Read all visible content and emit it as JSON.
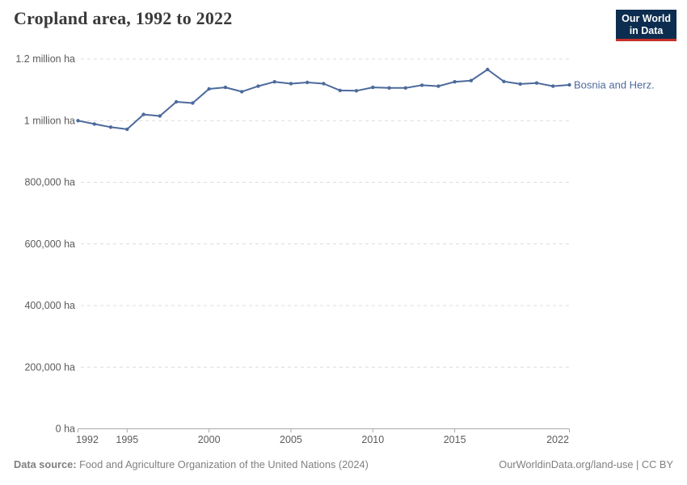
{
  "header": {
    "title": "Cropland area, 1992 to 2022",
    "logo": {
      "line1": "Our World",
      "line2": "in Data"
    }
  },
  "chart_data": {
    "type": "line",
    "title": "Cropland area, 1992 to 2022",
    "xlabel": "",
    "ylabel": "",
    "x": [
      1992,
      1993,
      1994,
      1995,
      1996,
      1997,
      1998,
      1999,
      2000,
      2001,
      2002,
      2003,
      2004,
      2005,
      2006,
      2007,
      2008,
      2009,
      2010,
      2011,
      2012,
      2013,
      2014,
      2015,
      2016,
      2017,
      2018,
      2019,
      2020,
      2021,
      2022
    ],
    "series": [
      {
        "name": "Bosnia and Herz.",
        "color": "#4C6A9C",
        "values": [
          1000000,
          989000,
          979000,
          972000,
          1020000,
          1015000,
          1061000,
          1057000,
          1103000,
          1108000,
          1094000,
          1112000,
          1126000,
          1120000,
          1124000,
          1120000,
          1098000,
          1097000,
          1108000,
          1106000,
          1106000,
          1115000,
          1112000,
          1126000,
          1130000,
          1166000,
          1127000,
          1119000,
          1122000,
          1112000,
          1116000
        ]
      }
    ],
    "xlim": [
      1992,
      2022
    ],
    "ylim": [
      0,
      1200000
    ],
    "y_ticks": [
      {
        "value": 0,
        "label": "0 ha"
      },
      {
        "value": 200000,
        "label": "200,000 ha"
      },
      {
        "value": 400000,
        "label": "400,000 ha"
      },
      {
        "value": 600000,
        "label": "600,000 ha"
      },
      {
        "value": 800000,
        "label": "800,000 ha"
      },
      {
        "value": 1000000,
        "label": "1 million ha"
      },
      {
        "value": 1200000,
        "label": "1.2 million ha"
      }
    ],
    "x_ticks": [
      {
        "value": 1992,
        "label": "1992"
      },
      {
        "value": 1995,
        "label": "1995"
      },
      {
        "value": 2000,
        "label": "2000"
      },
      {
        "value": 2005,
        "label": "2005"
      },
      {
        "value": 2010,
        "label": "2010"
      },
      {
        "value": 2015,
        "label": "2015"
      },
      {
        "value": 2022,
        "label": "2022"
      }
    ],
    "grid": "horizontal-dashed",
    "legend_position": "end-of-line-label"
  },
  "footer": {
    "source_label": "Data source:",
    "source_text": "Food and Agriculture Organization of the United Nations (2024)",
    "link_text": "OurWorldinData.org/land-use | CC BY"
  },
  "colors": {
    "series": "#4C6A9C",
    "grid": "#dcdcdc",
    "axis": "#a8a8a8",
    "tick_label": "#5b5b5b",
    "title": "#3a3a3a",
    "footer_text": "#808080",
    "logo_bg": "#0C2D4F",
    "logo_accent": "#C5302B",
    "logo_text": "#ffffff"
  }
}
